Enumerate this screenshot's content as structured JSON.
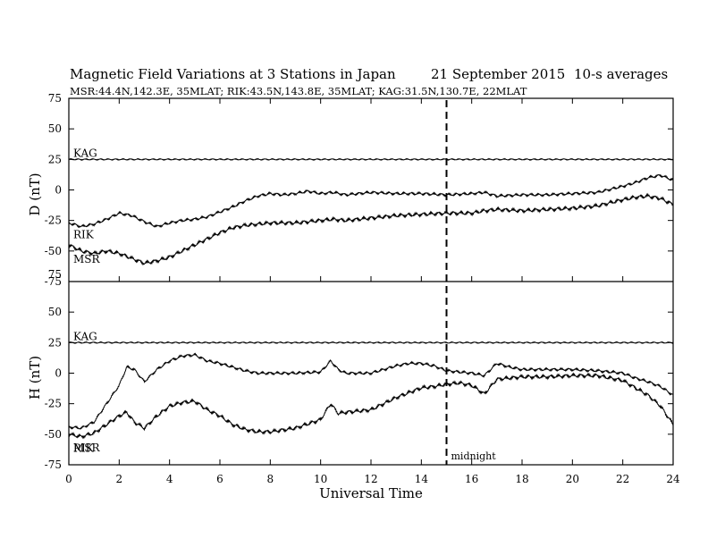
{
  "header": {
    "title": "Magnetic Field Variations at 3 Stations in Japan",
    "date": "21 September 2015",
    "averaging": "10-s averages",
    "stations_line": "MSR:44.4N,142.3E, 35MLAT;  RIK:43.5N,143.8E, 35MLAT;  KAG:31.5N,130.7E, 22MLAT"
  },
  "chart_data": {
    "type": "line",
    "xlabel": "Universal Time",
    "xlim": [
      0,
      24
    ],
    "x_ticks": [
      "0",
      "2",
      "4",
      "6",
      "8",
      "10",
      "12",
      "14",
      "16",
      "18",
      "20",
      "22",
      "24"
    ],
    "annotation": {
      "x": 15,
      "label": "midnight",
      "style": "dashed vertical line"
    },
    "panels": [
      {
        "id": "D",
        "ylabel": "D (nT)",
        "ylim": [
          -75,
          75
        ],
        "y_ticks": [
          "75",
          "50",
          "25",
          "0",
          "-25",
          "-50",
          "-75"
        ],
        "series": [
          {
            "name": "KAG",
            "x": [
              0,
              2,
              4,
              6,
              8,
              10,
              12,
              14,
              16,
              18,
              20,
              22,
              24
            ],
            "y": [
              25,
              25,
              25,
              25,
              25,
              25,
              25,
              25,
              25,
              25,
              25,
              25,
              25
            ]
          },
          {
            "name": "RIK",
            "x": [
              0,
              0.5,
              1,
              1.5,
              2,
              2.5,
              3,
              3.5,
              4,
              4.5,
              5,
              5.5,
              6,
              6.5,
              7,
              7.5,
              8,
              8.5,
              9,
              9.5,
              10,
              10.5,
              11,
              11.5,
              12,
              13,
              14,
              15,
              16,
              16.5,
              17,
              18,
              19,
              20,
              21,
              22,
              22.5,
              23,
              23.5,
              24
            ],
            "y": [
              -27,
              -30,
              -28,
              -24,
              -19,
              -21,
              -26,
              -30,
              -27,
              -25,
              -24,
              -22,
              -18,
              -14,
              -9,
              -5,
              -3,
              -4,
              -3,
              -1,
              -3,
              -2,
              -4,
              -3,
              -2,
              -3,
              -3,
              -4,
              -3,
              -2,
              -5,
              -4,
              -4,
              -3,
              -2,
              3,
              6,
              10,
              12,
              8
            ]
          },
          {
            "name": "MSR",
            "x": [
              0,
              0.5,
              1,
              1.5,
              2,
              2.5,
              3,
              3.5,
              4,
              4.5,
              5,
              5.5,
              6,
              6.5,
              7,
              7.5,
              8,
              8.5,
              9,
              9.5,
              10,
              10.5,
              11,
              11.5,
              12,
              13,
              14,
              15,
              16,
              16.5,
              17,
              18,
              19,
              20,
              21,
              22,
              22.5,
              23,
              23.5,
              24
            ],
            "y": [
              -45,
              -50,
              -52,
              -50,
              -52,
              -56,
              -60,
              -58,
              -55,
              -50,
              -45,
              -40,
              -35,
              -31,
              -29,
              -28,
              -27,
              -27,
              -27,
              -26,
              -25,
              -24,
              -25,
              -24,
              -23,
              -21,
              -20,
              -19,
              -19,
              -17,
              -16,
              -17,
              -16,
              -15,
              -13,
              -8,
              -6,
              -5,
              -7,
              -12
            ]
          }
        ]
      },
      {
        "id": "H",
        "ylabel": "H (nT)",
        "ylim": [
          -75,
          75
        ],
        "y_ticks": [
          "75",
          "50",
          "25",
          "0",
          "-25",
          "-50",
          "-75"
        ],
        "series": [
          {
            "name": "KAG",
            "x": [
              0,
              2,
              4,
              6,
              8,
              10,
              12,
              14,
              16,
              18,
              20,
              22,
              24
            ],
            "y": [
              25,
              25,
              25,
              25,
              25,
              25,
              25,
              25,
              25,
              25,
              25,
              25,
              25
            ]
          },
          {
            "name": "RIK",
            "x": [
              0,
              0.5,
              1,
              1.5,
              2,
              2.3,
              2.6,
              3,
              3.5,
              4,
              4.5,
              5,
              5.5,
              6,
              6.5,
              7,
              7.5,
              8,
              9,
              10,
              10.4,
              10.7,
              11,
              12,
              13,
              13.5,
              14,
              14.5,
              15,
              15.5,
              16,
              16.5,
              17,
              17.5,
              18,
              19,
              20,
              21,
              22,
              22.5,
              23,
              23.5,
              24
            ],
            "y": [
              -44,
              -45,
              -40,
              -25,
              -10,
              5,
              3,
              -7,
              3,
              10,
              14,
              15,
              10,
              8,
              5,
              2,
              0,
              0,
              0,
              1,
              10,
              3,
              0,
              0,
              6,
              8,
              8,
              6,
              2,
              1,
              0,
              -2,
              8,
              5,
              3,
              3,
              3,
              2,
              0,
              -4,
              -7,
              -11,
              -18
            ]
          },
          {
            "name": "MSR",
            "x": [
              0,
              0.5,
              1,
              1.5,
              2,
              2.3,
              2.6,
              3,
              3.5,
              4,
              4.5,
              5,
              5.5,
              6,
              6.5,
              7,
              7.5,
              8,
              9,
              10,
              10.4,
              10.7,
              11,
              12,
              13,
              13.5,
              14,
              14.5,
              15,
              15.5,
              16,
              16.5,
              17,
              17.5,
              18,
              19,
              20,
              21,
              22,
              22.5,
              23,
              23.5,
              24
            ],
            "y": [
              -50,
              -52,
              -49,
              -42,
              -35,
              -32,
              -40,
              -45,
              -35,
              -27,
              -24,
              -23,
              -30,
              -35,
              -42,
              -46,
              -48,
              -48,
              -45,
              -38,
              -25,
              -33,
              -32,
              -30,
              -20,
              -16,
              -12,
              -11,
              -9,
              -8,
              -10,
              -17,
              -5,
              -4,
              -3,
              -3,
              -2,
              -2,
              -6,
              -12,
              -18,
              -27,
              -42
            ]
          }
        ]
      }
    ]
  }
}
